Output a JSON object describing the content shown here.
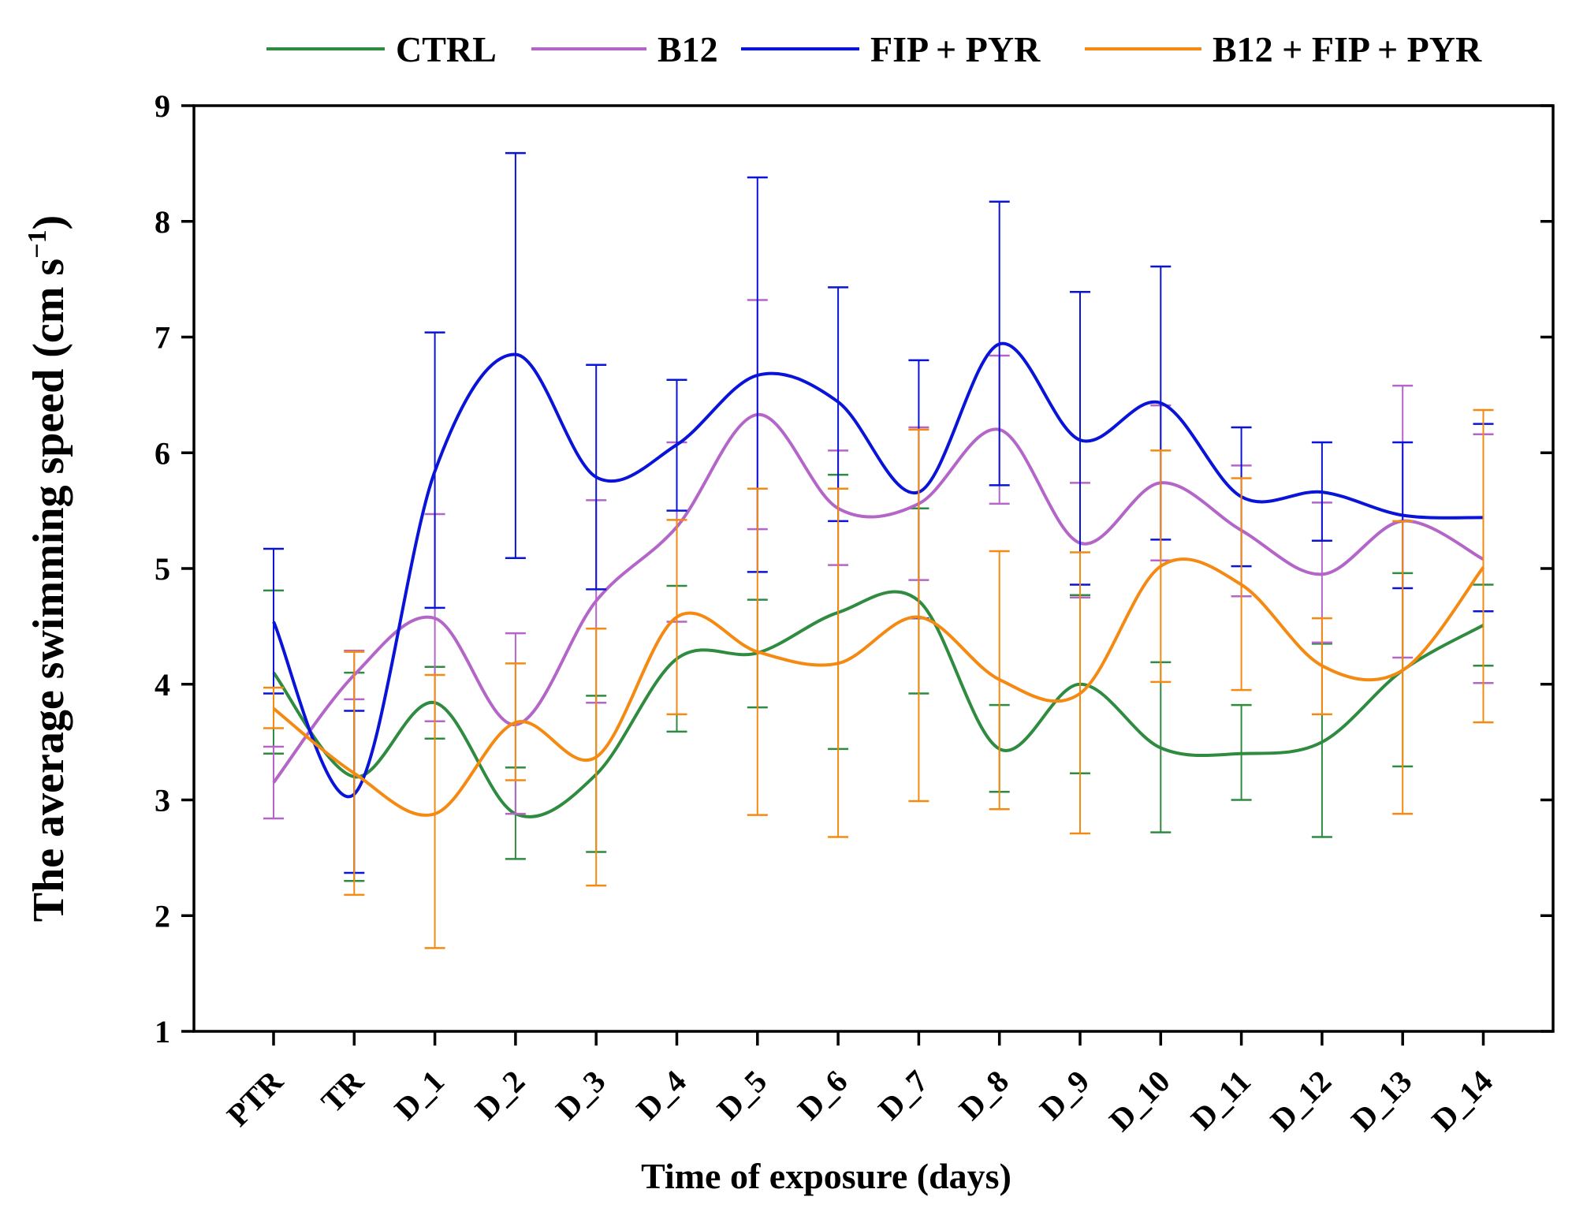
{
  "chart_data": {
    "type": "line",
    "title": "",
    "xlabel": "Time of exposure (days)",
    "ylabel": "The average swimming speed (cm s",
    "ylabel_unit_exponent": "−1",
    "ylabel_close": ")",
    "ylim": [
      1,
      9
    ],
    "yticks": [
      "1",
      "2",
      "3",
      "4",
      "5",
      "6",
      "7",
      "8",
      "9"
    ],
    "categories": [
      "PTR",
      "TR",
      "D_1",
      "D_2",
      "D_3",
      "D_4",
      "D_5",
      "D_6",
      "D_7",
      "D_8",
      "D_9",
      "D_10",
      "D_11",
      "D_12",
      "D_13",
      "D_14"
    ],
    "grid": false,
    "legend_position": "top",
    "series": [
      {
        "name": "CTRL",
        "color": "#2e8b3f",
        "values": [
          4.1,
          3.2,
          3.84,
          2.88,
          3.22,
          4.22,
          4.27,
          4.62,
          4.72,
          3.44,
          4.0,
          3.45,
          3.4,
          3.5,
          4.12,
          4.51
        ],
        "err_low": [
          3.4,
          2.3,
          3.53,
          2.49,
          2.55,
          3.59,
          3.8,
          3.44,
          3.92,
          3.07,
          3.23,
          2.72,
          3.0,
          2.68,
          3.29,
          4.16
        ],
        "err_high": [
          4.81,
          4.1,
          4.15,
          3.28,
          3.9,
          4.85,
          4.73,
          5.81,
          5.52,
          3.82,
          4.77,
          4.19,
          3.82,
          4.35,
          4.96,
          4.86
        ]
      },
      {
        "name": "B12",
        "color": "#b466c8",
        "values": [
          3.15,
          4.08,
          4.57,
          3.65,
          4.72,
          5.36,
          6.33,
          5.52,
          5.56,
          6.2,
          5.22,
          5.74,
          5.33,
          4.95,
          5.41,
          5.08
        ],
        "err_low": [
          2.84,
          3.87,
          3.68,
          2.88,
          3.84,
          4.54,
          5.34,
          5.03,
          4.9,
          5.56,
          4.75,
          5.07,
          4.76,
          4.36,
          4.23,
          4.01
        ],
        "err_high": [
          3.46,
          4.29,
          5.47,
          4.44,
          5.59,
          6.09,
          7.32,
          6.02,
          6.22,
          6.84,
          5.74,
          6.41,
          5.89,
          5.57,
          6.58,
          6.16
        ]
      },
      {
        "name": "FIP + PYR",
        "color": "#0a14d8",
        "values": [
          4.54,
          3.05,
          5.84,
          6.85,
          5.79,
          6.07,
          6.67,
          6.44,
          5.66,
          6.94,
          6.11,
          6.43,
          5.62,
          5.66,
          5.46,
          5.44
        ],
        "err_low": [
          3.92,
          2.37,
          4.66,
          5.09,
          4.82,
          5.5,
          4.97,
          5.41,
          4.57,
          5.72,
          4.86,
          5.25,
          5.02,
          5.24,
          4.83,
          4.63
        ],
        "err_high": [
          5.17,
          3.77,
          7.04,
          8.59,
          6.76,
          6.63,
          8.38,
          7.43,
          6.8,
          8.17,
          7.39,
          7.61,
          6.22,
          6.09,
          6.09,
          6.25
        ]
      },
      {
        "name": "B12 + FIP + PYR",
        "color": "#f58a12",
        "values": [
          3.79,
          3.23,
          2.88,
          3.67,
          3.37,
          4.58,
          4.28,
          4.18,
          4.58,
          4.04,
          3.92,
          5.02,
          4.86,
          4.16,
          4.12,
          5.01
        ],
        "err_low": [
          3.62,
          2.18,
          1.72,
          3.17,
          2.26,
          3.74,
          2.87,
          2.68,
          2.99,
          2.92,
          2.71,
          4.02,
          3.95,
          3.74,
          2.88,
          3.67
        ],
        "err_high": [
          3.97,
          4.28,
          4.08,
          4.18,
          4.48,
          5.42,
          5.69,
          5.69,
          6.2,
          5.15,
          5.14,
          6.02,
          5.78,
          4.57,
          5.41,
          6.37
        ]
      }
    ]
  }
}
